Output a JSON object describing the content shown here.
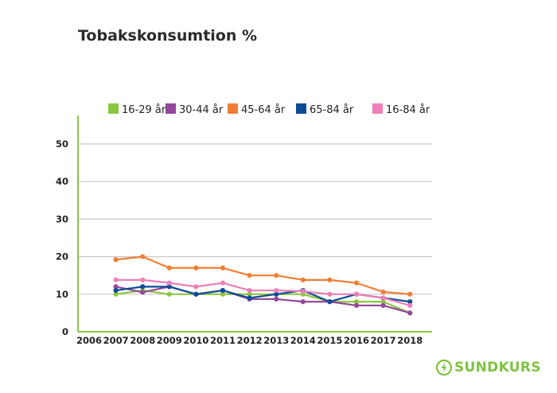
{
  "chart_data": {
    "type": "line",
    "title": "Tobakskonsumtion %",
    "x": [
      "2006",
      "2007",
      "2008",
      "2009",
      "2010",
      "2011",
      "2012",
      "2013",
      "2014",
      "2015",
      "2016",
      "2017",
      "2018"
    ],
    "ylim": [
      0,
      50
    ],
    "yticks": [
      0,
      10,
      20,
      30,
      40,
      50
    ],
    "grid": true,
    "legend_position": "top",
    "series": [
      {
        "name": "16-29 år",
        "color": "#8cc63f",
        "values": [
          null,
          10,
          11,
          10,
          10,
          10,
          10,
          10,
          10,
          8,
          8,
          8,
          5
        ]
      },
      {
        "name": "30-44 år",
        "color": "#93479b",
        "values": [
          null,
          12,
          10.5,
          12,
          10,
          11,
          8.7,
          8.7,
          8,
          8,
          7,
          7,
          5
        ]
      },
      {
        "name": "45-64 år",
        "color": "#f07f35",
        "values": [
          null,
          19.2,
          20,
          17,
          17,
          17,
          15,
          15,
          13.8,
          13.8,
          13,
          10.6,
          10
        ]
      },
      {
        "name": "65-84 år",
        "color": "#0e4c96",
        "values": [
          null,
          11,
          12,
          12,
          10,
          11,
          9,
          10,
          11,
          8,
          10,
          9,
          8
        ]
      },
      {
        "name": "16-84 år",
        "color": "#ee7fb8",
        "values": [
          null,
          13.8,
          13.8,
          13,
          12,
          13,
          11,
          11,
          10.8,
          10,
          10,
          9,
          7
        ]
      }
    ]
  },
  "brand": {
    "name": "SUNDKURS",
    "icon": "lightning-circle-icon",
    "color": "#7fc242"
  }
}
